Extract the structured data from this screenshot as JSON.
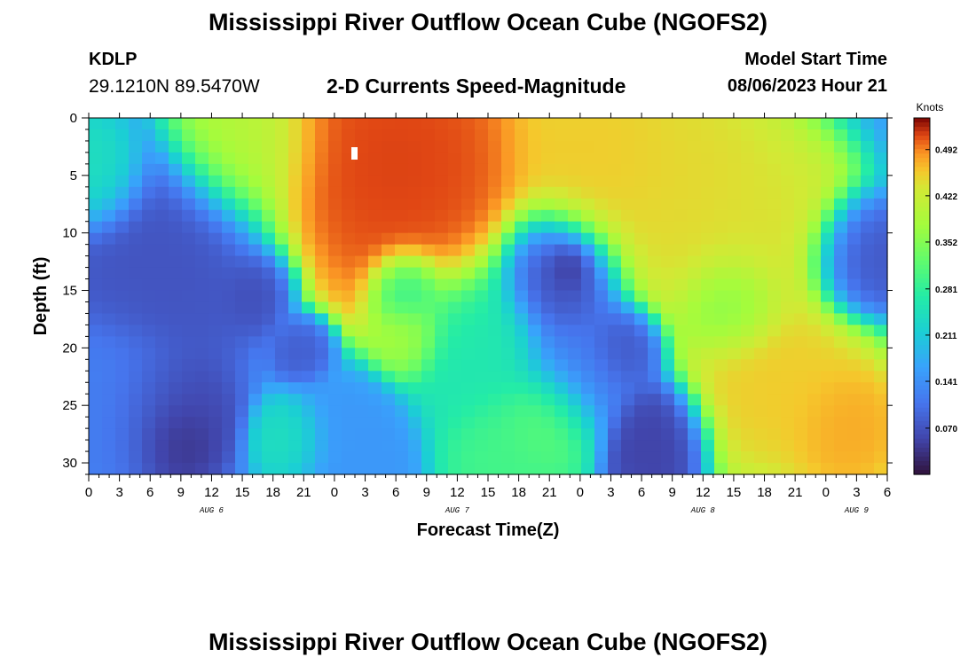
{
  "header": {
    "title": "Mississippi River Outflow Ocean Cube (NGOFS2)",
    "station_id": "KDLP",
    "station_coords": "29.1210N  89.5470W",
    "subtitle": "2-D Currents Speed-Magnitude",
    "model_start_label": "Model Start Time",
    "model_start_value": "08/06/2023 Hour 21"
  },
  "footer": {
    "title": "Mississippi River Outflow Ocean Cube (NGOFS2)"
  },
  "chart_data": {
    "type": "heatmap",
    "title": "2-D Currents Speed-Magnitude",
    "xlabel": "Forecast Time(Z)",
    "ylabel": "Depth (ft)",
    "xlim": [
      0,
      78
    ],
    "ylim": [
      0,
      31
    ],
    "y_inverted": true,
    "x_ticks": [
      0,
      3,
      6,
      9,
      12,
      15,
      18,
      21,
      24,
      27,
      30,
      33,
      36,
      39,
      42,
      45,
      48,
      51,
      54,
      57,
      60,
      63,
      66,
      69,
      72,
      75,
      78
    ],
    "x_tick_labels": [
      "0",
      "3",
      "6",
      "9",
      "12",
      "15",
      "18",
      "21",
      "0",
      "3",
      "6",
      "9",
      "12",
      "15",
      "18",
      "21",
      "0",
      "3",
      "6",
      "9",
      "12",
      "15",
      "18",
      "21",
      "0",
      "3",
      "6"
    ],
    "date_labels": [
      {
        "label": "AUG 6",
        "x": 12
      },
      {
        "label": "AUG 7",
        "x": 36
      },
      {
        "label": "AUG 8",
        "x": 60
      },
      {
        "label": "AUG 9",
        "x": 75
      }
    ],
    "y_ticks": [
      0,
      5,
      10,
      15,
      20,
      25,
      30
    ],
    "colorbar": {
      "label": "Knots",
      "min": 0,
      "max": 0.54,
      "tick_values": [
        0.07,
        0.141,
        0.211,
        0.281,
        0.352,
        0.422,
        0.492
      ],
      "tick_labels": [
        "0.070",
        "0.141",
        "0.211",
        "0.281",
        "0.352",
        "0.422",
        "0.492"
      ],
      "colormap": "turbo"
    },
    "grid": false,
    "features": [
      {
        "x": 30,
        "y": 4,
        "r": 11,
        "value": 0.52
      },
      {
        "x": 15,
        "y": 2,
        "r": 6,
        "value": 0.4
      },
      {
        "x": 50,
        "y": 3,
        "r": 7,
        "value": 0.46
      },
      {
        "x": 58,
        "y": 6,
        "r": 9,
        "value": 0.45
      },
      {
        "x": 66,
        "y": 10,
        "r": 7,
        "value": 0.44
      },
      {
        "x": 63,
        "y": 16,
        "r": 4,
        "value": 0.34
      },
      {
        "x": 67,
        "y": 23,
        "r": 7,
        "value": 0.46
      },
      {
        "x": 74,
        "y": 27,
        "r": 5,
        "value": 0.48
      },
      {
        "x": 41,
        "y": 29,
        "r": 5,
        "value": 0.3
      },
      {
        "x": 38,
        "y": 20,
        "r": 6,
        "value": 0.26
      },
      {
        "x": 31,
        "y": 19,
        "r": 3,
        "value": 0.38
      },
      {
        "x": 31,
        "y": 15,
        "r": 3,
        "value": 0.26
      },
      {
        "x": 45,
        "y": 26,
        "r": 4,
        "value": 0.33
      },
      {
        "x": 20,
        "y": 28,
        "r": 3,
        "value": 0.25
      },
      {
        "x": 1,
        "y": 5,
        "r": 4,
        "value": 0.25
      },
      {
        "x": 8,
        "y": 12,
        "r": 8,
        "value": 0.07
      },
      {
        "x": 7.5,
        "y": 26,
        "r": 5,
        "value": 0.05
      },
      {
        "x": 8.5,
        "y": 28,
        "r": 3,
        "value": 0.03
      },
      {
        "x": 16.5,
        "y": 15,
        "r": 3,
        "value": 0.06
      },
      {
        "x": 21,
        "y": 20,
        "r": 2.5,
        "value": 0.08
      },
      {
        "x": 46,
        "y": 14,
        "r": 5,
        "value": 0.06
      },
      {
        "x": 47,
        "y": 13,
        "r": 2,
        "value": 0.02
      },
      {
        "x": 52,
        "y": 20,
        "r": 3,
        "value": 0.07
      },
      {
        "x": 55.5,
        "y": 28,
        "r": 4,
        "value": 0.05
      },
      {
        "x": 75,
        "y": 12,
        "r": 4,
        "value": 0.07
      },
      {
        "x": 3,
        "y": 25,
        "r": 6,
        "value": 0.12
      },
      {
        "x": 25,
        "y": 28,
        "r": 5,
        "value": 0.15
      },
      {
        "x": 48,
        "y": 22,
        "r": 5,
        "value": 0.12
      }
    ],
    "base_value": 0.15
  }
}
